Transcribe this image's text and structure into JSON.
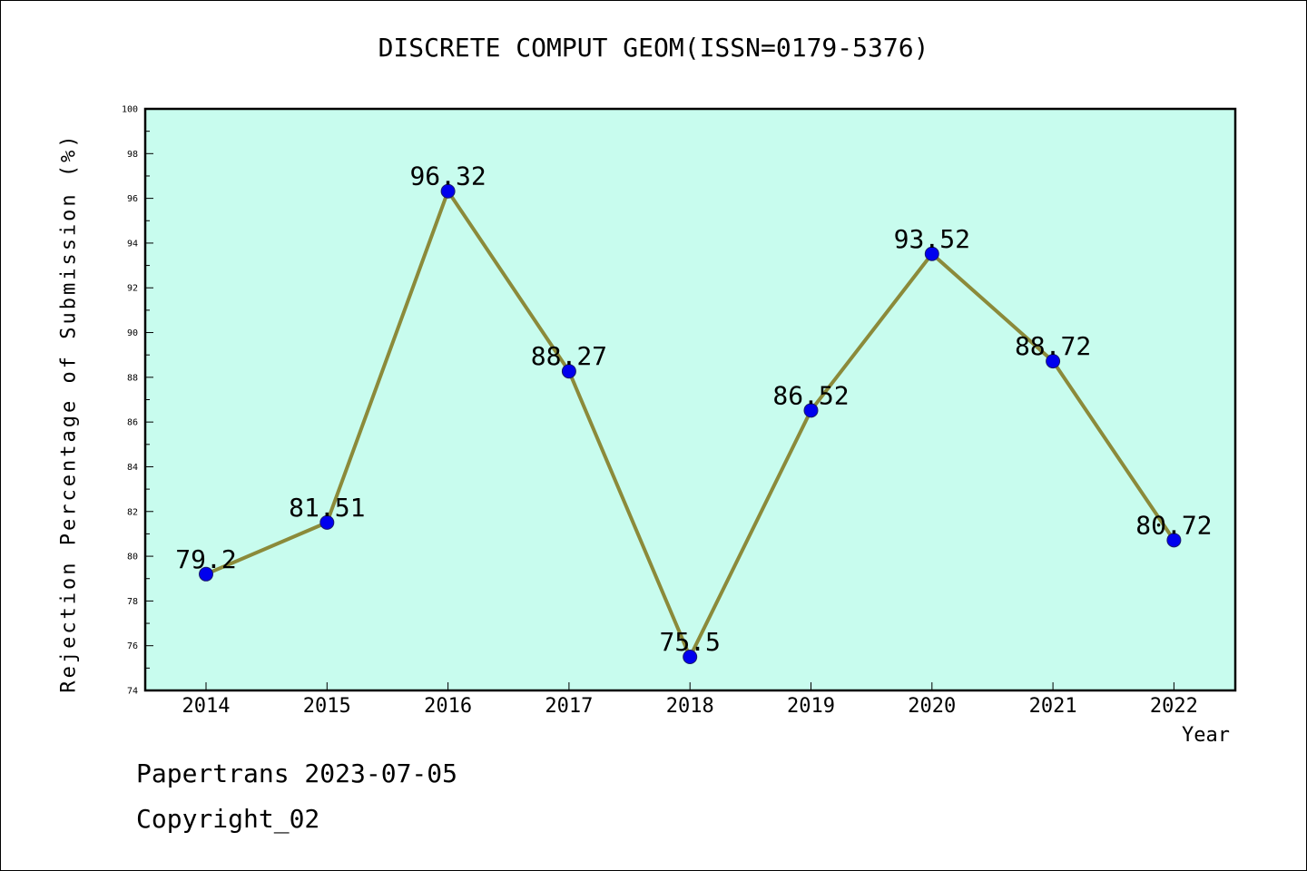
{
  "chart_data": {
    "type": "line",
    "title": "DISCRETE COMPUT GEOM(ISSN=0179-5376)",
    "xlabel": "Year",
    "ylabel": "Rejection Percentage of Submission (%)",
    "categories": [
      "2014",
      "2015",
      "2016",
      "2017",
      "2018",
      "2019",
      "2020",
      "2021",
      "2022"
    ],
    "series": [
      {
        "values": [
          79.2,
          81.51,
          96.32,
          88.27,
          75.5,
          86.52,
          93.52,
          88.72,
          80.72
        ],
        "labels": [
          "79.2",
          "81.51",
          "96.32",
          "88.27",
          "75.5",
          "86.52",
          "93.52",
          "88.72",
          "80.72"
        ],
        "line_color": "#8b8a3a",
        "marker_color": "#0000ee"
      }
    ],
    "ylim": [
      74,
      100
    ],
    "yticks": [
      "74",
      "76",
      "78",
      "80",
      "82",
      "84",
      "86",
      "88",
      "90",
      "92",
      "94",
      "96",
      "98",
      "100"
    ],
    "plot_background": "#c8fcee",
    "grid": false
  },
  "footer": {
    "line1": "Papertrans 2023-07-05",
    "line2": "Copyright_02"
  }
}
